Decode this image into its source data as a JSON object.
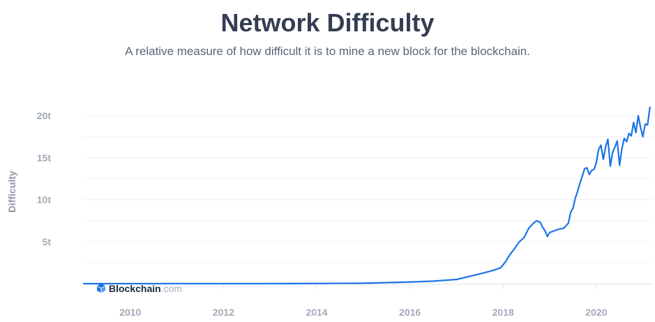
{
  "header": {
    "title": "Network Difficulty",
    "subtitle": "A relative measure of how difficult it is to mine a new block for the blockchain."
  },
  "branding": {
    "name": "Blockchain",
    "suffix": ".com",
    "logo_icon": "blockchain-cube-icon",
    "color": "#1d2740",
    "accent": "#1a73e8"
  },
  "colors": {
    "line": "#1a73e8",
    "grid": "#eef0f4",
    "axis": "#dfe3ea",
    "tick_label": "#a3aab8",
    "title": "#343e53"
  },
  "chart_data": {
    "type": "line",
    "title": "Network Difficulty",
    "subtitle": "A relative measure of how difficult it is to mine a new block for the blockchain.",
    "xlabel": "",
    "ylabel": "Difficulty",
    "xlim": [
      2009.0,
      2021.2
    ],
    "ylim": [
      0,
      22
    ],
    "x_ticks": [
      2010,
      2012,
      2014,
      2016,
      2018,
      2020
    ],
    "x_tick_labels": [
      "2010",
      "2012",
      "2014",
      "2016",
      "2018",
      "2020"
    ],
    "y_ticks": [
      5,
      10,
      15,
      20
    ],
    "y_tick_labels": [
      "5t",
      "10t",
      "15t",
      "20t"
    ],
    "grid": true,
    "legend": "none",
    "series": [
      {
        "values_unit": "trillions",
        "x": [
          2009.0,
          2013.5,
          2015.0,
          2016.0,
          2016.5,
          2017.0,
          2017.3,
          2017.6,
          2017.8,
          2017.95,
          2018.05,
          2018.15,
          2018.25,
          2018.35,
          2018.45,
          2018.55,
          2018.65,
          2018.72,
          2018.8,
          2018.85,
          2018.9,
          2018.95,
          2019.0,
          2019.05,
          2019.1,
          2019.2,
          2019.3,
          2019.4,
          2019.45,
          2019.5,
          2019.55,
          2019.6,
          2019.65,
          2019.7,
          2019.75,
          2019.8,
          2019.85,
          2019.9,
          2019.95,
          2020.0,
          2020.05,
          2020.1,
          2020.15,
          2020.2,
          2020.25,
          2020.3,
          2020.35,
          2020.4,
          2020.45,
          2020.5,
          2020.55,
          2020.6,
          2020.65,
          2020.7,
          2020.75,
          2020.8,
          2020.85,
          2020.9,
          2020.95,
          2021.0,
          2021.05,
          2021.1,
          2021.15
        ],
        "values": [
          0.0,
          0.01,
          0.05,
          0.2,
          0.3,
          0.5,
          0.9,
          1.3,
          1.6,
          1.9,
          2.6,
          3.5,
          4.2,
          5.0,
          5.5,
          6.6,
          7.2,
          7.5,
          7.3,
          6.7,
          6.3,
          5.6,
          6.1,
          6.2,
          6.3,
          6.5,
          6.6,
          7.2,
          8.5,
          9.0,
          10.2,
          11.0,
          12.0,
          12.8,
          13.7,
          13.8,
          13.0,
          13.5,
          13.6,
          14.4,
          16.0,
          16.5,
          14.8,
          16.3,
          17.2,
          14.0,
          15.6,
          16.3,
          17.0,
          14.1,
          16.1,
          17.3,
          16.9,
          17.9,
          17.6,
          19.2,
          18.0,
          20.0,
          18.6,
          17.5,
          19.0,
          18.9,
          21.0
        ]
      }
    ]
  }
}
